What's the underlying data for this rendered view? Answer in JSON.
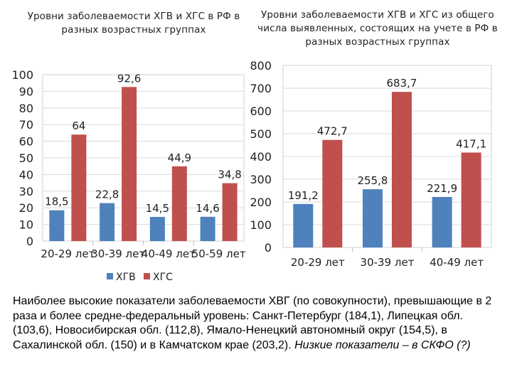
{
  "chart_data": [
    {
      "type": "bar",
      "title": "Уровни заболеваемости ХГВ и ХГС в РФ в разных возрастных группах",
      "categories": [
        "20-29 лет",
        "30-39 лет",
        "40-49 лет",
        "50-59 лет"
      ],
      "series": [
        {
          "name": "ХГВ",
          "values": [
            18.5,
            22.8,
            14.5,
            14.6
          ],
          "labels": [
            "18,5",
            "22,8",
            "14,5",
            "14,6"
          ],
          "color": "#4f81bd"
        },
        {
          "name": "ХГС",
          "values": [
            64,
            92.6,
            44.9,
            34.8
          ],
          "labels": [
            "64",
            "92,6",
            "44,9",
            "34,8"
          ],
          "color": "#c0504d"
        }
      ],
      "ylim": [
        0,
        100
      ],
      "yticks": [
        0,
        10,
        20,
        30,
        40,
        50,
        60,
        70,
        80,
        90,
        100
      ],
      "grid": true,
      "legend": "bottom"
    },
    {
      "type": "bar",
      "title": "Уровни заболеваемости ХГВ и ХГС из общего числа выявленных, состоящих на учете в РФ в разных возрастных группах",
      "categories": [
        "20-29 лет",
        "30-39 лет",
        "40-49 лет"
      ],
      "series": [
        {
          "name": "ХГВ",
          "values": [
            191.2,
            255.8,
            221.9
          ],
          "labels": [
            "191,2",
            "255,8",
            "221,9"
          ],
          "color": "#4f81bd"
        },
        {
          "name": "ХГС",
          "values": [
            472.7,
            683.7,
            417.1
          ],
          "labels": [
            "472,7",
            "683,7",
            "417,1"
          ],
          "color": "#c0504d"
        }
      ],
      "ylim": [
        0,
        800
      ],
      "yticks": [
        0,
        100,
        200,
        300,
        400,
        500,
        600,
        700,
        800
      ],
      "grid": true,
      "legend": "none"
    }
  ],
  "bottom_text": {
    "main": "Наиболее высокие показатели заболеваемости ХВГ (по совокупности), превышающие в 2 раза и более средне-федеральный уровень: Санкт-Петербург (184,1), Липецкая обл.  (103,6), Новосибирская обл. (112,8), Ямало-Ненецкий автономный округ (154,5), в Сахалинской обл. (150) и в Камчатском крае (203,2).",
    "italic": "Низкие показатели – в СКФО (?)"
  }
}
